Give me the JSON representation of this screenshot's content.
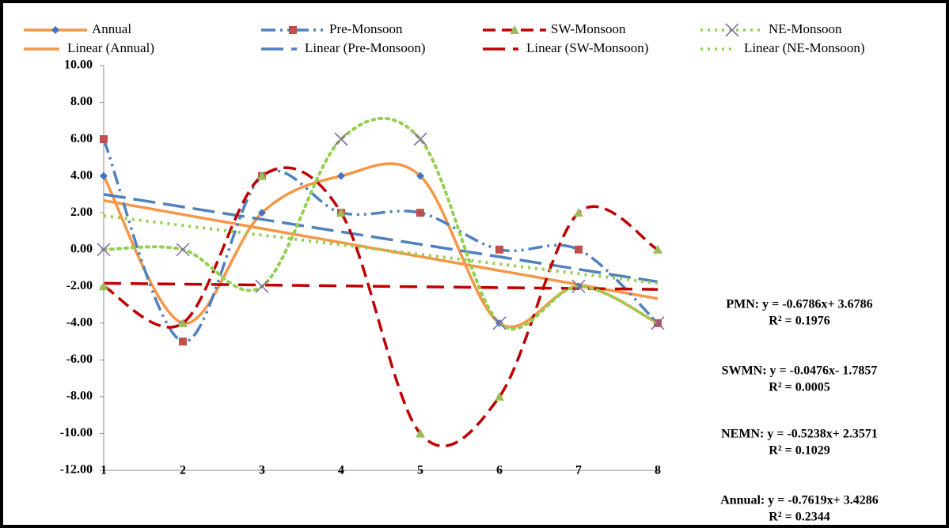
{
  "chart_data": {
    "type": "line",
    "smooth": true,
    "x": [
      1,
      2,
      3,
      4,
      5,
      6,
      7,
      8
    ],
    "xlim": [
      1,
      8
    ],
    "xticks": [
      1,
      2,
      3,
      4,
      5,
      6,
      7,
      8
    ],
    "ylim": [
      -12,
      10
    ],
    "yticks": [
      {
        "value": -12,
        "label": "-12.00"
      },
      {
        "value": -10,
        "label": "-10.00"
      },
      {
        "value": -8,
        "label": "-8.00"
      },
      {
        "value": -6,
        "label": "-6.00"
      },
      {
        "value": -4,
        "label": "-4.00"
      },
      {
        "value": -2,
        "label": "-2.00"
      },
      {
        "value": 0,
        "label": "0.00"
      },
      {
        "value": 2,
        "label": "2.00"
      },
      {
        "value": 4,
        "label": "4.00"
      },
      {
        "value": 6,
        "label": "6.00"
      },
      {
        "value": 8,
        "label": "8.00"
      },
      {
        "value": 10,
        "label": "10.00"
      }
    ],
    "series": [
      {
        "name": "Annual",
        "color": "#f79646",
        "marker": "diamond",
        "marker_color": "#4472c4",
        "dash": "solid",
        "values": [
          4,
          -4,
          2,
          4,
          4,
          -4,
          -2,
          -4
        ],
        "trend": {
          "name": "Linear (Annual)",
          "slope": -0.7619,
          "intercept": 3.4286,
          "equation": "Annual: y = -0.7619x+ 3.4286",
          "r2_label": "R² = 0.2344",
          "r2": 0.2344
        }
      },
      {
        "name": "Pre-Monsoon",
        "color": "#4f81bd",
        "marker": "square",
        "marker_color": "#c0504d",
        "dash": "dashdot",
        "values": [
          6,
          -5,
          4,
          2,
          2,
          0,
          0,
          -4
        ],
        "trend": {
          "name": "Linear (Pre-Monsoon)",
          "slope": -0.6786,
          "intercept": 3.6786,
          "equation": "PMN: y = -0.6786x+ 3.6786",
          "r2_label": "R² = 0.1976",
          "r2": 0.1976
        }
      },
      {
        "name": "SW-Monsoon",
        "color": "#c00000",
        "marker": "triangle",
        "marker_color": "#9bbb59",
        "dash": "dash",
        "values": [
          -2,
          -4,
          4,
          2,
          -10,
          -8,
          2,
          0
        ],
        "trend": {
          "name": "Linear (SW-Monsoon)",
          "slope": -0.0476,
          "intercept": -1.7857,
          "equation": "SWMN: y = -0.0476x- 1.7857",
          "r2_label": "R² = 0.0005",
          "r2": 0.0005
        }
      },
      {
        "name": "NE-Monsoon",
        "color": "#92d050",
        "marker": "x",
        "marker_color": "#8064a2",
        "dash": "dot",
        "values": [
          0,
          0,
          -2,
          6,
          6,
          -4,
          -2,
          -4
        ],
        "trend": {
          "name": "Linear (NE-Monsoon)",
          "slope": -0.5238,
          "intercept": 2.3571,
          "equation": "NEMN: y = -0.5238x+ 2.3571",
          "r2_label": "R² = 0.1029",
          "r2": 0.1029
        }
      }
    ]
  }
}
